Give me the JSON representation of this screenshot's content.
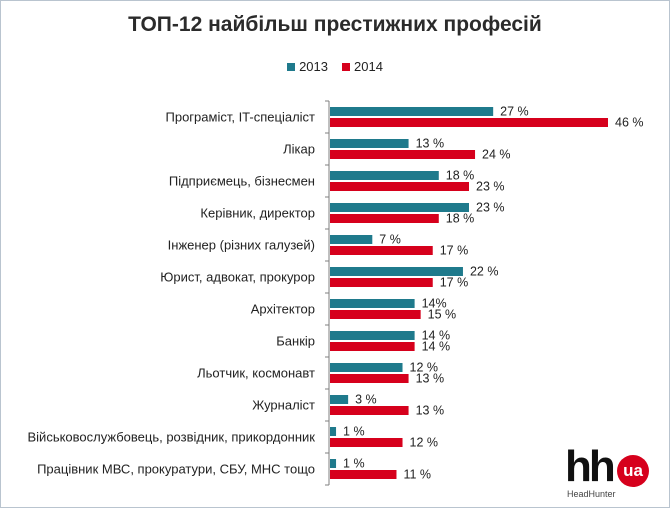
{
  "chart_data": {
    "type": "bar",
    "orientation": "horizontal",
    "title": "ТОП-12 найбільш престижних професій",
    "legend_position": "top",
    "categories": [
      "Програміст, IT-спеціаліст",
      "Лікар",
      "Підприємець, бізнесмен",
      "Керівник, директор",
      "Інженер (різних галузей)",
      "Юрист, адвокат, прокурор",
      "Архітектор",
      "Банкір",
      "Льотчик, космонавт",
      "Журналіст",
      "Військовослужбовець, розвідник, прикордонник",
      "Працівник МВС, прокуратури, СБУ, МНС тощо"
    ],
    "series": [
      {
        "name": "2013",
        "color": "#1f7a8c",
        "values": [
          27,
          13,
          18,
          23,
          7,
          22,
          14,
          14,
          12,
          3,
          1,
          1
        ],
        "labels": [
          "27 %",
          "13 %",
          "18 %",
          "23 %",
          "7 %",
          "22 %",
          "14%",
          "14 %",
          "12 %",
          "3 %",
          "1 %",
          "1 %"
        ]
      },
      {
        "name": "2014",
        "color": "#d6001c",
        "values": [
          46,
          24,
          23,
          18,
          17,
          17,
          15,
          14,
          13,
          13,
          12,
          11
        ],
        "labels": [
          "46 %",
          "24 %",
          "23 %",
          "18 %",
          "17 %",
          "17 %",
          "15 %",
          "14 %",
          "13 %",
          "13 %",
          "12 %",
          "11 %"
        ]
      }
    ],
    "xlim": [
      0,
      46
    ],
    "grid": false
  },
  "logo": {
    "mark": "hh",
    "badge": "ua",
    "subtitle": "HeadHunter"
  }
}
